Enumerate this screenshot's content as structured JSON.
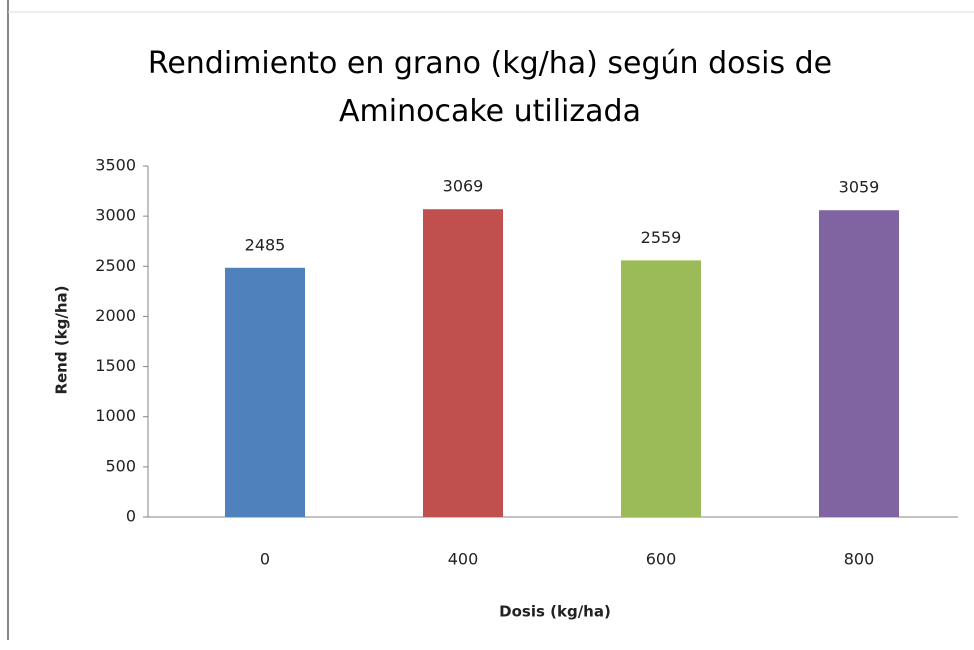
{
  "chart_data": {
    "type": "bar",
    "title": "Rendimiento en grano (kg/ha) según dosis de Aminocake utilizada",
    "x_label": "Dosis (kg/ha)",
    "y_label": "Rend (kg/ha)",
    "categories": [
      "0",
      "400",
      "600",
      "800"
    ],
    "values": [
      2485,
      3069,
      2559,
      3059
    ],
    "colors": [
      "#4f81bd",
      "#c0504d",
      "#9bbb59",
      "#8064a2"
    ],
    "ylim": [
      0,
      3500
    ],
    "yticks": [
      0,
      500,
      1000,
      1500,
      2000,
      2500,
      3000,
      3500
    ],
    "grid": false
  }
}
